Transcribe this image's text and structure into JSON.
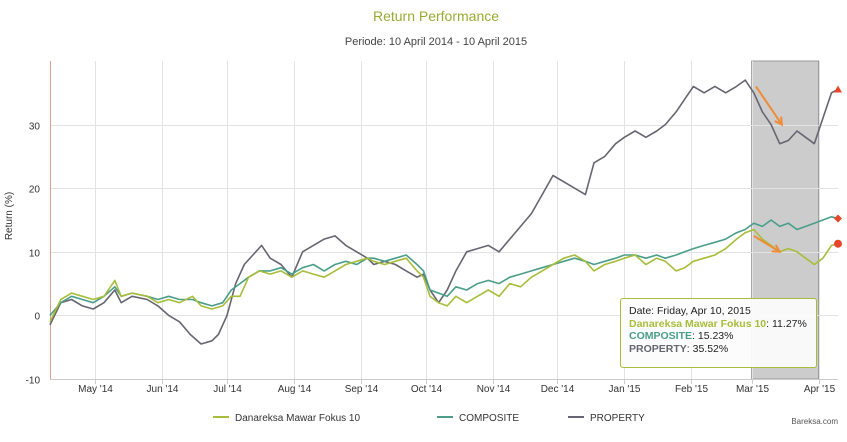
{
  "chart_data": {
    "type": "line",
    "title": "Return Performance",
    "subtitle": "Periode: 10 April 2014 - 10 April 2015",
    "ylabel": "Return (%)",
    "xlabel": "",
    "ylim": [
      -10,
      40
    ],
    "y_ticks": [
      -10,
      0,
      10,
      20,
      30
    ],
    "x_range": [
      0,
      365
    ],
    "x_ticks": [
      {
        "day": 21,
        "label": "May '14"
      },
      {
        "day": 52,
        "label": "Jun '14"
      },
      {
        "day": 82,
        "label": "Jul '14"
      },
      {
        "day": 113,
        "label": "Aug '14"
      },
      {
        "day": 144,
        "label": "Sep '14"
      },
      {
        "day": 174,
        "label": "Oct '14"
      },
      {
        "day": 205,
        "label": "Nov '14"
      },
      {
        "day": 235,
        "label": "Dec '14"
      },
      {
        "day": 266,
        "label": "Jan '15"
      },
      {
        "day": 297,
        "label": "Feb '15"
      },
      {
        "day": 325,
        "label": "Mar '15"
      },
      {
        "day": 356,
        "label": "Apr '15"
      }
    ],
    "highlight_band": {
      "from_day": 325,
      "to_day": 356,
      "color": "#cccccc"
    },
    "series": [
      {
        "name": "Danareksa Mawar Fokus 10",
        "color": "#a8bd3a",
        "marker": "circle",
        "points": [
          [
            0,
            -1
          ],
          [
            5,
            2.5
          ],
          [
            10,
            3.5
          ],
          [
            15,
            3
          ],
          [
            20,
            2.5
          ],
          [
            25,
            3
          ],
          [
            30,
            5.5
          ],
          [
            33,
            3
          ],
          [
            38,
            3.5
          ],
          [
            45,
            3
          ],
          [
            50,
            2
          ],
          [
            55,
            2.5
          ],
          [
            60,
            2
          ],
          [
            66,
            3
          ],
          [
            70,
            1.5
          ],
          [
            75,
            1
          ],
          [
            80,
            1.5
          ],
          [
            84,
            3
          ],
          [
            88,
            3
          ],
          [
            92,
            6
          ],
          [
            97,
            7
          ],
          [
            102,
            6.5
          ],
          [
            107,
            7
          ],
          [
            112,
            6
          ],
          [
            117,
            7
          ],
          [
            122,
            6.5
          ],
          [
            127,
            6
          ],
          [
            132,
            7
          ],
          [
            137,
            8
          ],
          [
            142,
            8.5
          ],
          [
            147,
            9
          ],
          [
            150,
            8.5
          ],
          [
            155,
            8
          ],
          [
            160,
            8.5
          ],
          [
            165,
            9
          ],
          [
            170,
            7
          ],
          [
            173,
            6
          ],
          [
            176,
            3
          ],
          [
            180,
            2
          ],
          [
            184,
            1.5
          ],
          [
            188,
            3
          ],
          [
            193,
            2
          ],
          [
            198,
            3
          ],
          [
            203,
            4
          ],
          [
            208,
            3
          ],
          [
            213,
            5
          ],
          [
            218,
            4.5
          ],
          [
            223,
            6
          ],
          [
            228,
            7
          ],
          [
            233,
            8
          ],
          [
            238,
            9
          ],
          [
            243,
            9.5
          ],
          [
            248,
            8.5
          ],
          [
            252,
            7
          ],
          [
            257,
            8
          ],
          [
            262,
            8.5
          ],
          [
            266,
            9
          ],
          [
            271,
            9.5
          ],
          [
            276,
            8
          ],
          [
            281,
            9
          ],
          [
            285,
            8.5
          ],
          [
            290,
            7
          ],
          [
            294,
            7.5
          ],
          [
            298,
            8.5
          ],
          [
            303,
            9
          ],
          [
            308,
            9.5
          ],
          [
            313,
            10.5
          ],
          [
            318,
            12
          ],
          [
            322,
            13
          ],
          [
            326,
            13.5
          ],
          [
            330,
            12
          ],
          [
            334,
            11
          ],
          [
            338,
            10
          ],
          [
            342,
            10.5
          ],
          [
            346,
            10
          ],
          [
            350,
            9
          ],
          [
            354,
            8
          ],
          [
            358,
            9
          ],
          [
            362,
            11
          ],
          [
            365,
            11.27
          ]
        ]
      },
      {
        "name": "COMPOSITE",
        "color": "#4a9e8a",
        "marker": "diamond",
        "points": [
          [
            0,
            0
          ],
          [
            5,
            2
          ],
          [
            10,
            3
          ],
          [
            15,
            2.5
          ],
          [
            20,
            2
          ],
          [
            25,
            3
          ],
          [
            30,
            4.5
          ],
          [
            33,
            3
          ],
          [
            38,
            3.5
          ],
          [
            45,
            3
          ],
          [
            50,
            2.5
          ],
          [
            55,
            3
          ],
          [
            60,
            2.5
          ],
          [
            66,
            2.5
          ],
          [
            70,
            2
          ],
          [
            75,
            1.5
          ],
          [
            80,
            2
          ],
          [
            84,
            4
          ],
          [
            88,
            5
          ],
          [
            92,
            6
          ],
          [
            97,
            7
          ],
          [
            102,
            7
          ],
          [
            107,
            7.5
          ],
          [
            112,
            6.5
          ],
          [
            117,
            7.5
          ],
          [
            122,
            8
          ],
          [
            127,
            7
          ],
          [
            132,
            8
          ],
          [
            137,
            8.5
          ],
          [
            142,
            8
          ],
          [
            147,
            9
          ],
          [
            150,
            9
          ],
          [
            155,
            8.5
          ],
          [
            160,
            9
          ],
          [
            165,
            9.5
          ],
          [
            170,
            8
          ],
          [
            173,
            7
          ],
          [
            176,
            4
          ],
          [
            180,
            3.5
          ],
          [
            184,
            3
          ],
          [
            188,
            4.5
          ],
          [
            193,
            4
          ],
          [
            198,
            5
          ],
          [
            203,
            5.5
          ],
          [
            208,
            5
          ],
          [
            213,
            6
          ],
          [
            218,
            6.5
          ],
          [
            223,
            7
          ],
          [
            228,
            7.5
          ],
          [
            233,
            8
          ],
          [
            238,
            8.5
          ],
          [
            243,
            9
          ],
          [
            248,
            8.5
          ],
          [
            252,
            8
          ],
          [
            257,
            8.5
          ],
          [
            262,
            9
          ],
          [
            266,
            9.5
          ],
          [
            271,
            9.5
          ],
          [
            276,
            9
          ],
          [
            281,
            9.5
          ],
          [
            285,
            9
          ],
          [
            290,
            9.5
          ],
          [
            294,
            10
          ],
          [
            298,
            10.5
          ],
          [
            303,
            11
          ],
          [
            308,
            11.5
          ],
          [
            313,
            12
          ],
          [
            318,
            13
          ],
          [
            322,
            13.5
          ],
          [
            326,
            14.5
          ],
          [
            330,
            14
          ],
          [
            334,
            15
          ],
          [
            338,
            14
          ],
          [
            342,
            14.5
          ],
          [
            346,
            13.5
          ],
          [
            350,
            14
          ],
          [
            354,
            14.5
          ],
          [
            358,
            15
          ],
          [
            362,
            15.5
          ],
          [
            365,
            15.23
          ]
        ]
      },
      {
        "name": "PROPERTY",
        "color": "#666672",
        "marker": "triangle",
        "points": [
          [
            0,
            -1.5
          ],
          [
            5,
            2
          ],
          [
            10,
            2.5
          ],
          [
            15,
            1.5
          ],
          [
            20,
            1
          ],
          [
            25,
            2
          ],
          [
            30,
            4
          ],
          [
            33,
            2
          ],
          [
            38,
            3
          ],
          [
            45,
            2.5
          ],
          [
            50,
            1.5
          ],
          [
            55,
            0
          ],
          [
            60,
            -1
          ],
          [
            65,
            -3
          ],
          [
            70,
            -4.5
          ],
          [
            75,
            -4
          ],
          [
            78,
            -3
          ],
          [
            82,
            0
          ],
          [
            86,
            5
          ],
          [
            90,
            8
          ],
          [
            94,
            9.5
          ],
          [
            98,
            11
          ],
          [
            102,
            9
          ],
          [
            107,
            8
          ],
          [
            112,
            6
          ],
          [
            117,
            10
          ],
          [
            122,
            11
          ],
          [
            127,
            12
          ],
          [
            132,
            12.5
          ],
          [
            137,
            11
          ],
          [
            142,
            10
          ],
          [
            147,
            9
          ],
          [
            150,
            8
          ],
          [
            155,
            8.5
          ],
          [
            160,
            8
          ],
          [
            165,
            7
          ],
          [
            170,
            6
          ],
          [
            173,
            6.5
          ],
          [
            176,
            4
          ],
          [
            180,
            2
          ],
          [
            184,
            4
          ],
          [
            188,
            7
          ],
          [
            193,
            10
          ],
          [
            198,
            10.5
          ],
          [
            203,
            11
          ],
          [
            208,
            10
          ],
          [
            213,
            12
          ],
          [
            218,
            14
          ],
          [
            223,
            16
          ],
          [
            228,
            19
          ],
          [
            233,
            22
          ],
          [
            238,
            21
          ],
          [
            243,
            20
          ],
          [
            248,
            19
          ],
          [
            252,
            24
          ],
          [
            257,
            25
          ],
          [
            262,
            27
          ],
          [
            266,
            28
          ],
          [
            271,
            29
          ],
          [
            276,
            28
          ],
          [
            281,
            29
          ],
          [
            285,
            30
          ],
          [
            290,
            32
          ],
          [
            294,
            34
          ],
          [
            298,
            36
          ],
          [
            303,
            35
          ],
          [
            308,
            36
          ],
          [
            313,
            35
          ],
          [
            318,
            36
          ],
          [
            322,
            37
          ],
          [
            326,
            35
          ],
          [
            330,
            32
          ],
          [
            334,
            30
          ],
          [
            338,
            27
          ],
          [
            342,
            27.5
          ],
          [
            346,
            29
          ],
          [
            350,
            28
          ],
          [
            354,
            27
          ],
          [
            358,
            31
          ],
          [
            362,
            35
          ],
          [
            365,
            35.52
          ]
        ]
      }
    ],
    "annotations": {
      "arrow_color": "#ef8c3a",
      "arrows": [
        {
          "from": [
            327,
            36
          ],
          "to": [
            339,
            30
          ]
        },
        {
          "from": [
            326,
            12.5
          ],
          "to": [
            338,
            10
          ]
        }
      ]
    },
    "tooltip": {
      "date": "Date: Friday, Apr 10, 2015",
      "rows": [
        {
          "name": "Danareksa Mawar Fokus 10",
          "value": "11.27%"
        },
        {
          "name": "COMPOSITE",
          "value": "15.23%"
        },
        {
          "name": "PROPERTY",
          "value": "35.52%"
        }
      ]
    },
    "legend": [
      "Danareksa Mawar Fokus 10",
      "COMPOSITE",
      "PROPERTY"
    ],
    "legend_position": "bottom",
    "credit": "Bareksa.com"
  }
}
